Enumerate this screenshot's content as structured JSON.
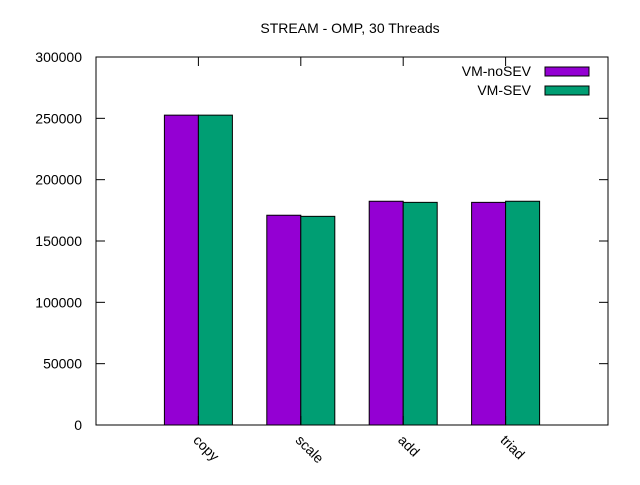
{
  "chart_data": {
    "type": "bar",
    "title": "STREAM - OMP, 30 Threads",
    "xlabel": "",
    "ylabel": "",
    "categories": [
      "copy",
      "scale",
      "add",
      "triad"
    ],
    "series": [
      {
        "name": "VM-noSEV",
        "color": "#9400d3",
        "values": [
          252600,
          171000,
          182400,
          181500
        ]
      },
      {
        "name": "VM-SEV",
        "color": "#009e73",
        "values": [
          252600,
          170100,
          181500,
          182400
        ]
      }
    ],
    "ylim": [
      0,
      300000
    ],
    "yticks": [
      0,
      50000,
      100000,
      150000,
      200000,
      250000,
      300000
    ],
    "grid": false,
    "legend": "top-right"
  }
}
